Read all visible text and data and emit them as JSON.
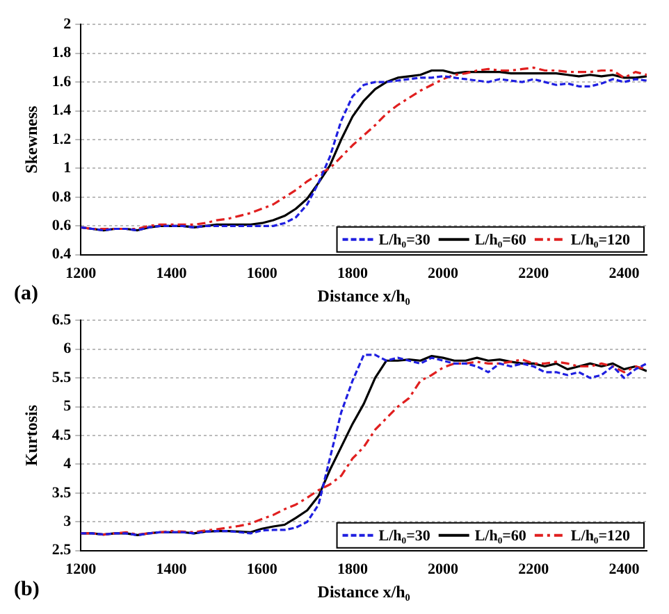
{
  "chart_data": [
    {
      "type": "line",
      "xlabel": "Distance x/h₀",
      "ylabel": "Skewness",
      "annotations": [
        "(a)"
      ],
      "x": [
        1200,
        1225,
        1250,
        1275,
        1300,
        1325,
        1350,
        1375,
        1400,
        1425,
        1450,
        1475,
        1500,
        1525,
        1550,
        1575,
        1600,
        1625,
        1650,
        1675,
        1700,
        1725,
        1750,
        1775,
        1800,
        1825,
        1850,
        1875,
        1900,
        1925,
        1950,
        1975,
        2000,
        2025,
        2050,
        2075,
        2100,
        2125,
        2150,
        2175,
        2200,
        2225,
        2250,
        2275,
        2300,
        2325,
        2350,
        2375,
        2400,
        2425,
        2450
      ],
      "series": [
        {
          "name": "L/h₀=30",
          "color": "#1f1fe0",
          "line_style": "dashed",
          "values": [
            0.59,
            0.58,
            0.57,
            0.58,
            0.58,
            0.57,
            0.59,
            0.6,
            0.6,
            0.6,
            0.59,
            0.6,
            0.6,
            0.6,
            0.6,
            0.6,
            0.6,
            0.6,
            0.62,
            0.66,
            0.75,
            0.9,
            1.08,
            1.33,
            1.5,
            1.58,
            1.6,
            1.6,
            1.61,
            1.62,
            1.63,
            1.63,
            1.64,
            1.63,
            1.62,
            1.61,
            1.6,
            1.62,
            1.61,
            1.6,
            1.62,
            1.6,
            1.58,
            1.59,
            1.57,
            1.57,
            1.59,
            1.62,
            1.6,
            1.62,
            1.61
          ]
        },
        {
          "name": "L/h₀=60",
          "color": "#000000",
          "line_style": "solid",
          "values": [
            0.59,
            0.58,
            0.57,
            0.58,
            0.58,
            0.57,
            0.59,
            0.6,
            0.6,
            0.6,
            0.59,
            0.6,
            0.61,
            0.61,
            0.61,
            0.61,
            0.62,
            0.64,
            0.67,
            0.72,
            0.79,
            0.9,
            1.02,
            1.2,
            1.36,
            1.47,
            1.55,
            1.6,
            1.63,
            1.64,
            1.65,
            1.68,
            1.68,
            1.66,
            1.67,
            1.67,
            1.67,
            1.67,
            1.66,
            1.66,
            1.66,
            1.66,
            1.66,
            1.65,
            1.64,
            1.65,
            1.64,
            1.65,
            1.63,
            1.63,
            1.64
          ]
        },
        {
          "name": "L/h₀=120",
          "color": "#e01f1f",
          "line_style": "dashed",
          "values": [
            0.59,
            0.58,
            0.58,
            0.58,
            0.58,
            0.58,
            0.6,
            0.61,
            0.61,
            0.61,
            0.61,
            0.62,
            0.64,
            0.65,
            0.67,
            0.69,
            0.72,
            0.75,
            0.8,
            0.85,
            0.91,
            0.96,
            1.0,
            1.08,
            1.16,
            1.23,
            1.3,
            1.38,
            1.44,
            1.49,
            1.54,
            1.58,
            1.62,
            1.65,
            1.66,
            1.68,
            1.69,
            1.68,
            1.68,
            1.69,
            1.7,
            1.68,
            1.68,
            1.67,
            1.67,
            1.67,
            1.68,
            1.68,
            1.63,
            1.67,
            1.65
          ]
        }
      ],
      "xlim": [
        1200,
        2450
      ],
      "xticks": [
        1200,
        1400,
        1600,
        1800,
        2000,
        2200,
        2400
      ],
      "ylim": [
        0.4,
        2
      ],
      "yticks": [
        0.4,
        0.6,
        0.8,
        1,
        1.2,
        1.4,
        1.6,
        1.8,
        2
      ],
      "grid": "y",
      "legend": "bottom right",
      "marker": "none"
    },
    {
      "type": "line",
      "xlabel": "Distance x/h₀",
      "ylabel": "Kurtosis",
      "annotations": [
        "(b)"
      ],
      "x": [
        1200,
        1225,
        1250,
        1275,
        1300,
        1325,
        1350,
        1375,
        1400,
        1425,
        1450,
        1475,
        1500,
        1525,
        1550,
        1575,
        1600,
        1625,
        1650,
        1675,
        1700,
        1725,
        1750,
        1775,
        1800,
        1825,
        1850,
        1875,
        1900,
        1925,
        1950,
        1975,
        2000,
        2025,
        2050,
        2075,
        2100,
        2125,
        2150,
        2175,
        2200,
        2225,
        2250,
        2275,
        2300,
        2325,
        2350,
        2375,
        2400,
        2425,
        2450
      ],
      "series": [
        {
          "name": "L/h₀=30",
          "color": "#1f1fe0",
          "line_style": "dashed",
          "values": [
            2.8,
            2.8,
            2.78,
            2.8,
            2.8,
            2.77,
            2.8,
            2.82,
            2.82,
            2.82,
            2.8,
            2.83,
            2.84,
            2.84,
            2.82,
            2.8,
            2.85,
            2.86,
            2.86,
            2.9,
            3.0,
            3.3,
            4.1,
            4.9,
            5.45,
            5.9,
            5.9,
            5.8,
            5.85,
            5.8,
            5.75,
            5.85,
            5.8,
            5.75,
            5.75,
            5.7,
            5.6,
            5.75,
            5.7,
            5.75,
            5.7,
            5.6,
            5.6,
            5.55,
            5.6,
            5.5,
            5.55,
            5.7,
            5.5,
            5.65,
            5.75
          ]
        },
        {
          "name": "L/h₀=60",
          "color": "#000000",
          "line_style": "solid",
          "values": [
            2.8,
            2.8,
            2.78,
            2.8,
            2.8,
            2.77,
            2.8,
            2.82,
            2.82,
            2.82,
            2.8,
            2.83,
            2.84,
            2.84,
            2.83,
            2.82,
            2.88,
            2.92,
            2.95,
            3.07,
            3.2,
            3.45,
            3.9,
            4.3,
            4.7,
            5.05,
            5.5,
            5.8,
            5.8,
            5.82,
            5.8,
            5.88,
            5.85,
            5.8,
            5.8,
            5.85,
            5.8,
            5.82,
            5.78,
            5.75,
            5.75,
            5.7,
            5.75,
            5.65,
            5.7,
            5.75,
            5.7,
            5.75,
            5.65,
            5.7,
            5.62
          ]
        },
        {
          "name": "L/h₀=120",
          "color": "#e01f1f",
          "line_style": "dashed",
          "values": [
            2.8,
            2.8,
            2.78,
            2.8,
            2.82,
            2.78,
            2.8,
            2.82,
            2.84,
            2.83,
            2.82,
            2.85,
            2.87,
            2.9,
            2.93,
            2.97,
            3.05,
            3.12,
            3.22,
            3.3,
            3.42,
            3.55,
            3.65,
            3.8,
            4.1,
            4.3,
            4.6,
            4.8,
            5.0,
            5.15,
            5.45,
            5.55,
            5.68,
            5.75,
            5.75,
            5.78,
            5.75,
            5.75,
            5.78,
            5.82,
            5.75,
            5.75,
            5.78,
            5.75,
            5.7,
            5.7,
            5.75,
            5.7,
            5.6,
            5.7,
            5.65
          ]
        }
      ],
      "xlim": [
        1200,
        2450
      ],
      "xticks": [
        1200,
        1400,
        1600,
        1800,
        2000,
        2200,
        2400
      ],
      "ylim": [
        2.5,
        6.5
      ],
      "yticks": [
        2.5,
        3,
        3.5,
        4,
        4.5,
        5,
        5.5,
        6,
        6.5
      ],
      "grid": "y",
      "legend": "bottom right",
      "marker": "none"
    }
  ]
}
